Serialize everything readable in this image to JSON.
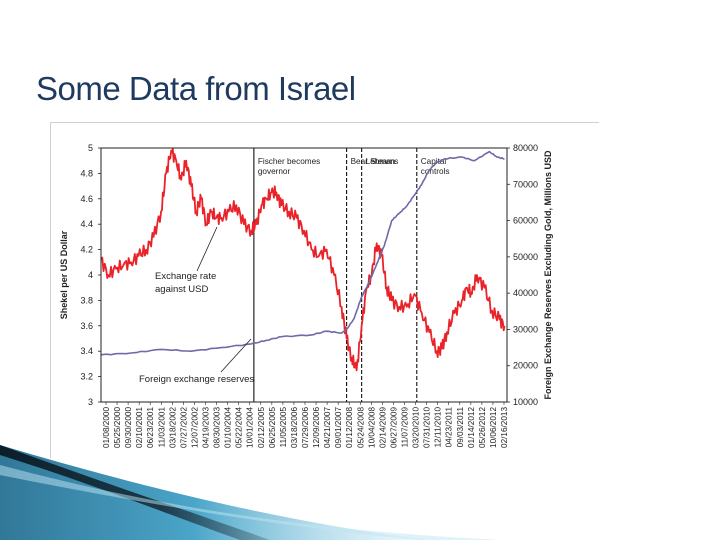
{
  "slide": {
    "title": "Some Data from Israel"
  },
  "colors": {
    "exchange_rate": "#e8232a",
    "reserves": "#6f6aa8",
    "title": "#1f3a5f"
  },
  "chart_data": {
    "type": "line",
    "title": "",
    "ylabel_left": "Shekel per US Dollar",
    "ylabel_right": "Foreign Exchange Reserves Excluding Gold, Millions USD",
    "ylim_left": [
      3,
      5
    ],
    "ylim_right": [
      10000,
      80000
    ],
    "yticks_left": [
      "3",
      "3.2",
      "3.4",
      "3.6",
      "3.8",
      "4",
      "4.2",
      "4.4",
      "4.6",
      "4.8",
      "5"
    ],
    "yticks_right": [
      "10000",
      "20000",
      "30000",
      "40000",
      "50000",
      "60000",
      "70000",
      "80000"
    ],
    "x_ticks": [
      "01/08/2000",
      "05/25/2000",
      "09/30/2000",
      "02/10/2001",
      "06/23/2001",
      "11/03/2001",
      "03/18/2002",
      "07/27/2002",
      "12/07/2002",
      "04/19/2003",
      "08/30/2003",
      "01/10/2004",
      "05/22/2004",
      "10/01/2004",
      "02/12/2005",
      "06/25/2005",
      "11/05/2005",
      "03/18/2006",
      "07/29/2006",
      "12/09/2006",
      "04/21/2007",
      "09/01/2007",
      "01/12/2008",
      "05/24/2008",
      "10/04/2008",
      "02/14/2009",
      "06/27/2009",
      "11/07/2009",
      "03/20/2010",
      "07/31/2010",
      "12/11/2010",
      "04/23/2011",
      "09/03/2011",
      "01/14/2012",
      "05/26/2012",
      "10/06/2012",
      "02/16/2013"
    ],
    "event_lines": [
      {
        "date": "02/2005",
        "label": "Fischer becomes governor",
        "style": "solid"
      },
      {
        "date": "03/2008",
        "label": "Bear Stearns",
        "style": "dashed"
      },
      {
        "date": "09/2008",
        "label": "Lehman",
        "style": "dashed"
      },
      {
        "date": "07/2010",
        "label": "Capital controls",
        "style": "dashed"
      }
    ],
    "annotations": {
      "exchange_rate": "Exchange rate against USD",
      "reserves": "Foreign exchange reserves"
    },
    "series": [
      {
        "axis": "left",
        "x": [
          "2000-01",
          "2000-04",
          "2000-07",
          "2000-10",
          "2001-01",
          "2001-04",
          "2001-07",
          "2001-10",
          "2002-01",
          "2002-03",
          "2002-05",
          "2002-07",
          "2002-09",
          "2002-11",
          "2003-01",
          "2003-03",
          "2003-05",
          "2003-07",
          "2003-09",
          "2003-11",
          "2004-01",
          "2004-04",
          "2004-07",
          "2004-10",
          "2005-01",
          "2005-03",
          "2005-05",
          "2005-07",
          "2005-09",
          "2005-11",
          "2006-01",
          "2006-04",
          "2006-07",
          "2006-10",
          "2007-01",
          "2007-04",
          "2007-07",
          "2007-10",
          "2008-01",
          "2008-03",
          "2008-05",
          "2008-07",
          "2008-09",
          "2008-11",
          "2009-01",
          "2009-03",
          "2009-05",
          "2009-07",
          "2009-09",
          "2009-12",
          "2010-03",
          "2010-06",
          "2010-09",
          "2010-12",
          "2011-03",
          "2011-05",
          "2011-07",
          "2011-10",
          "2012-01",
          "2012-03",
          "2012-05",
          "2012-07",
          "2012-10",
          "2013-01",
          "2013-04",
          "2013-06"
        ],
        "values": [
          4.12,
          4.0,
          4.05,
          4.08,
          4.1,
          4.15,
          4.2,
          4.3,
          4.5,
          4.8,
          4.98,
          4.9,
          4.75,
          4.9,
          4.7,
          4.5,
          4.6,
          4.4,
          4.5,
          4.45,
          4.45,
          4.5,
          4.55,
          4.4,
          4.35,
          4.4,
          4.55,
          4.6,
          4.65,
          4.65,
          4.55,
          4.5,
          4.45,
          4.35,
          4.2,
          4.15,
          4.2,
          4.0,
          3.75,
          3.5,
          3.35,
          3.25,
          3.6,
          3.9,
          4.0,
          4.25,
          4.15,
          3.9,
          3.8,
          3.75,
          3.75,
          3.85,
          3.7,
          3.55,
          3.4,
          3.42,
          3.55,
          3.7,
          3.8,
          3.9,
          3.85,
          4.0,
          3.9,
          3.72,
          3.65,
          3.6
        ]
      },
      {
        "axis": "right",
        "x": [
          "2000-01",
          "2001-01",
          "2002-01",
          "2003-01",
          "2004-01",
          "2005-01",
          "2005-07",
          "2006-01",
          "2007-01",
          "2007-07",
          "2008-01",
          "2008-03",
          "2008-06",
          "2008-09",
          "2008-12",
          "2009-03",
          "2009-06",
          "2009-09",
          "2009-12",
          "2010-03",
          "2010-06",
          "2010-09",
          "2010-12",
          "2011-03",
          "2011-06",
          "2012-01",
          "2012-06",
          "2012-12",
          "2013-03",
          "2013-06"
        ],
        "values": [
          23000,
          23500,
          24500,
          24000,
          25000,
          26000,
          27000,
          28000,
          28500,
          29500,
          29000,
          30000,
          33000,
          39000,
          43000,
          48000,
          53000,
          60000,
          62000,
          64000,
          67000,
          70000,
          74000,
          76000,
          77000,
          77500,
          76500,
          79000,
          77500,
          77000
        ]
      }
    ]
  }
}
